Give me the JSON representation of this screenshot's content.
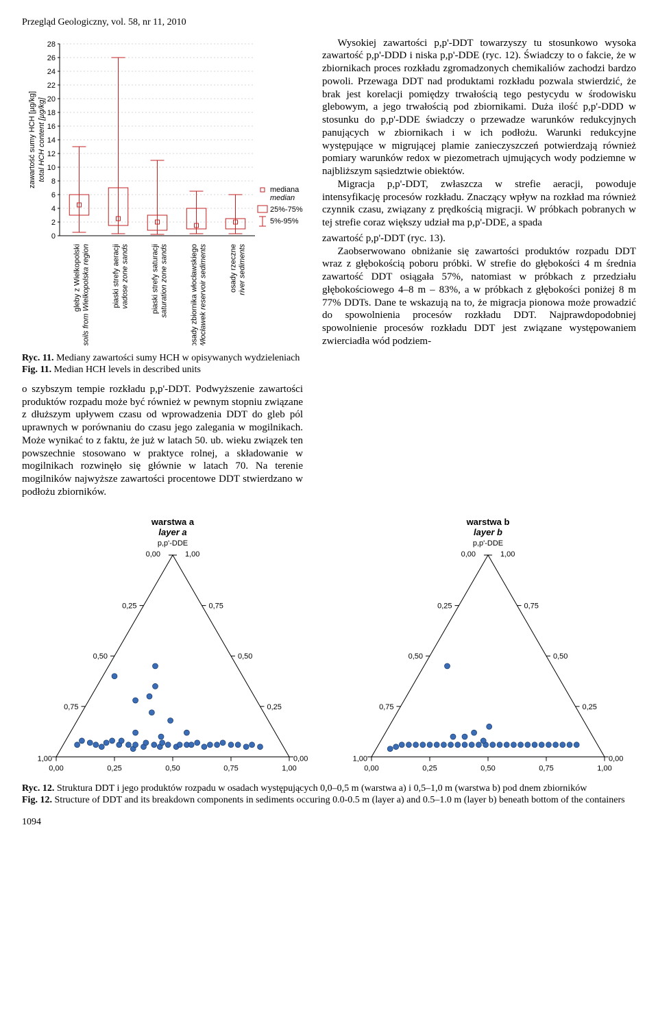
{
  "header": "Przegląd Geologiczny, vol. 58, nr 11, 2010",
  "page_number": "1094",
  "boxplot": {
    "type": "boxplot",
    "y_axis_label_pl": "zawartość sumy HCH [µg/kg]",
    "y_axis_label_en": "total HCH content [µg/kg]",
    "ylim": [
      0,
      28
    ],
    "ytick_step": 2,
    "yticks": [
      0,
      2,
      4,
      6,
      8,
      10,
      12,
      14,
      16,
      18,
      20,
      22,
      24,
      26,
      28
    ],
    "categories": [
      {
        "pl": "gleby z Wielkopolski",
        "en": "soils from Wielkopolska region"
      },
      {
        "pl": "piaski strefy aeracji",
        "en": "vadose zone sands"
      },
      {
        "pl": "piaski strefy saturacji",
        "en": "saturation zone sands"
      },
      {
        "pl": "osady zbiornika włocławskiego",
        "en": "Włocławek reservoir sediments"
      },
      {
        "pl": "osady rzeczne",
        "en": "river sediments"
      }
    ],
    "boxes": [
      {
        "whisker_low": 0.5,
        "q1": 3.0,
        "median": 4.5,
        "q3": 6.0,
        "whisker_high": 13.0
      },
      {
        "whisker_low": 0.3,
        "q1": 1.5,
        "median": 2.5,
        "q3": 7.0,
        "whisker_high": 26.0
      },
      {
        "whisker_low": 0.2,
        "q1": 0.8,
        "median": 2.0,
        "q3": 3.0,
        "whisker_high": 11.0
      },
      {
        "whisker_low": 0.3,
        "q1": 1.0,
        "median": 1.5,
        "q3": 4.0,
        "whisker_high": 6.5
      },
      {
        "whisker_low": 0.3,
        "q1": 1.0,
        "median": 2.0,
        "q3": 2.5,
        "whisker_high": 6.0
      }
    ],
    "legend": {
      "median_pl": "mediana",
      "median_en": "median",
      "range1": "25%-75%",
      "range2": "5%-95%"
    },
    "colors": {
      "box_border": "#c02020",
      "median_marker": "#c02020",
      "whisker": "#c02020",
      "grid": "#c8c8c8",
      "axis": "#000000",
      "bg": "#ffffff"
    },
    "box_width": 0.5,
    "label_fontsize": 11,
    "tick_fontsize": 11
  },
  "fig11": {
    "pl_bold": "Ryc. 11.",
    "pl_text": " Mediany zawartości sumy HCH w opisywanych wydzieleniach",
    "en_bold": "Fig. 11.",
    "en_text": " Median HCH levels in described units"
  },
  "left_para": "o szybszym tempie rozkładu p,p'-DDT. Podwyższenie zawartości produktów rozpadu może być również w pewnym stopniu związane z dłuższym upływem czasu od wprowadzenia DDT do gleb pól uprawnych w porównaniu do czasu jego zalegania w mogilnikach. Może wynikać to z faktu, że już w latach 50. ub. wieku związek ten powszechnie stosowano w praktyce rolnej, a składowanie w mogilnikach rozwinęło się głównie w latach 70. Na terenie mogilników najwyższe zawartości procentowe DDT stwierdzano w podłożu zbiorników.",
  "right_p1": "Wysokiej zawartości p,p'-DDT towarzyszy tu stosunkowo wysoka zawartość p,p'-DDD i niska p,p'-DDE (ryc. 12). Świadczy to o fakcie, że w zbiornikach proces rozkładu zgromadzonych chemikaliów zachodzi bardzo powoli. Przewaga DDT nad produktami rozkładu pozwala stwierdzić, że brak jest korelacji pomiędzy trwałością tego pestycydu w środowisku glebowym, a jego trwałością pod zbiornikami. Duża ilość p,p'-DDD w stosunku do p,p'-DDE świadczy o przewadze warunków redukcyjnych panujących w zbiornikach i w ich podłożu. Warunki redukcyjne występujące w migrującej plamie zanieczyszczeń potwierdzają również pomiary warunków redox w piezometrach ujmujących wody podziemne w najbliższym sąsiedztwie obiektów.",
  "right_p2": "Migracja p,p'-DDT, zwłaszcza w strefie aeracji, powoduje intensyfikację procesów rozkładu. Znaczący wpływ na rozkład ma również czynnik czasu, związany z prędkością migracji. W próbkach pobranych w tej strefie coraz większy udział ma p,p'-DDE, a spada",
  "full_p1": "zawartość p,p'-DDT (ryc. 13).",
  "full_p2": "Zaobserwowano obniżanie się zawartości produktów rozpadu DDT wraz z głębokością poboru próbki. W strefie do głębokości 4 m średnia zawartość DDT osiągała 57%, natomiast w próbkach z przedziału głębokościowego 4–8 m – 83%, a w próbkach z głębokości poniżej 8 m 77% DDTs. Dane te wskazują na to, że migracja pionowa może prowadzić do spowolnienia procesów rozkładu DDT. Najprawdopodobniej spowolnienie procesów rozkładu DDT jest związane występowaniem zwierciadła wód podziem-",
  "ternary": {
    "type": "ternary",
    "title_a_pl": "warstwa a",
    "title_a_en": "layer a",
    "title_b_pl": "warstwa b",
    "title_b_en": "layer b",
    "apex_top": "p,p'-DDE",
    "apex_left": "p,p'-DDT",
    "apex_right": "p,p'-DDD",
    "tick_labels": [
      "0,00",
      "0,25",
      "0,50",
      "0,75",
      "1,00"
    ],
    "ticks_numeric": [
      0.0,
      0.25,
      0.5,
      0.75,
      1.0
    ],
    "colors": {
      "line": "#000000",
      "point_fill": "#3a6db5",
      "point_stroke": "#1a3a6b",
      "bg": "#ffffff"
    },
    "point_radius": 4,
    "label_fontsize": 11,
    "points_a": [
      [
        0.88,
        0.06,
        0.06
      ],
      [
        0.85,
        0.08,
        0.07
      ],
      [
        0.82,
        0.07,
        0.11
      ],
      [
        0.8,
        0.06,
        0.14
      ],
      [
        0.78,
        0.05,
        0.17
      ],
      [
        0.75,
        0.07,
        0.18
      ],
      [
        0.72,
        0.08,
        0.2
      ],
      [
        0.7,
        0.06,
        0.24
      ],
      [
        0.68,
        0.08,
        0.24
      ],
      [
        0.66,
        0.06,
        0.28
      ],
      [
        0.65,
        0.04,
        0.31
      ],
      [
        0.63,
        0.06,
        0.31
      ],
      [
        0.6,
        0.05,
        0.35
      ],
      [
        0.58,
        0.07,
        0.35
      ],
      [
        0.55,
        0.06,
        0.39
      ],
      [
        0.53,
        0.05,
        0.42
      ],
      [
        0.51,
        0.07,
        0.42
      ],
      [
        0.49,
        0.06,
        0.45
      ],
      [
        0.46,
        0.05,
        0.49
      ],
      [
        0.44,
        0.06,
        0.5
      ],
      [
        0.41,
        0.06,
        0.53
      ],
      [
        0.39,
        0.06,
        0.55
      ],
      [
        0.36,
        0.07,
        0.57
      ],
      [
        0.34,
        0.05,
        0.61
      ],
      [
        0.31,
        0.06,
        0.63
      ],
      [
        0.28,
        0.06,
        0.66
      ],
      [
        0.25,
        0.07,
        0.68
      ],
      [
        0.22,
        0.06,
        0.72
      ],
      [
        0.19,
        0.06,
        0.75
      ],
      [
        0.16,
        0.05,
        0.79
      ],
      [
        0.13,
        0.06,
        0.81
      ],
      [
        0.1,
        0.05,
        0.85
      ],
      [
        0.45,
        0.3,
        0.25
      ],
      [
        0.52,
        0.28,
        0.2
      ],
      [
        0.4,
        0.35,
        0.25
      ],
      [
        0.35,
        0.45,
        0.2
      ],
      [
        0.48,
        0.22,
        0.3
      ],
      [
        0.42,
        0.18,
        0.4
      ],
      [
        0.38,
        0.12,
        0.5
      ],
      [
        0.55,
        0.4,
        0.05
      ],
      [
        0.5,
        0.1,
        0.4
      ],
      [
        0.6,
        0.12,
        0.28
      ]
    ],
    "points_b": [
      [
        0.9,
        0.04,
        0.06
      ],
      [
        0.87,
        0.05,
        0.08
      ],
      [
        0.84,
        0.06,
        0.1
      ],
      [
        0.81,
        0.06,
        0.13
      ],
      [
        0.78,
        0.06,
        0.16
      ],
      [
        0.75,
        0.06,
        0.19
      ],
      [
        0.72,
        0.06,
        0.22
      ],
      [
        0.69,
        0.06,
        0.25
      ],
      [
        0.66,
        0.06,
        0.28
      ],
      [
        0.63,
        0.06,
        0.31
      ],
      [
        0.6,
        0.06,
        0.34
      ],
      [
        0.57,
        0.06,
        0.37
      ],
      [
        0.54,
        0.06,
        0.4
      ],
      [
        0.51,
        0.06,
        0.43
      ],
      [
        0.48,
        0.06,
        0.46
      ],
      [
        0.45,
        0.06,
        0.49
      ],
      [
        0.42,
        0.06,
        0.52
      ],
      [
        0.39,
        0.06,
        0.55
      ],
      [
        0.36,
        0.06,
        0.58
      ],
      [
        0.33,
        0.06,
        0.61
      ],
      [
        0.3,
        0.06,
        0.64
      ],
      [
        0.27,
        0.06,
        0.67
      ],
      [
        0.24,
        0.06,
        0.7
      ],
      [
        0.21,
        0.06,
        0.73
      ],
      [
        0.18,
        0.06,
        0.76
      ],
      [
        0.15,
        0.06,
        0.79
      ],
      [
        0.12,
        0.06,
        0.82
      ],
      [
        0.09,
        0.06,
        0.85
      ],
      [
        0.5,
        0.12,
        0.38
      ],
      [
        0.55,
        0.1,
        0.35
      ],
      [
        0.45,
        0.45,
        0.1
      ],
      [
        0.42,
        0.15,
        0.43
      ],
      [
        0.48,
        0.08,
        0.44
      ],
      [
        0.6,
        0.1,
        0.3
      ]
    ]
  },
  "fig12": {
    "pl_bold": "Ryc. 12.",
    "pl_text": " Struktura DDT i jego produktów rozpadu w osadach występujących 0,0–0,5 m (warstwa a) i 0,5–1,0 m (warstwa b) pod dnem zbiorników",
    "en_bold": "Fig. 12.",
    "en_text": " Structure of DDT and its breakdown components in sediments occuring 0.0-0.5 m (layer a) and 0.5–1.0 m (layer b) beneath bottom of the containers"
  }
}
